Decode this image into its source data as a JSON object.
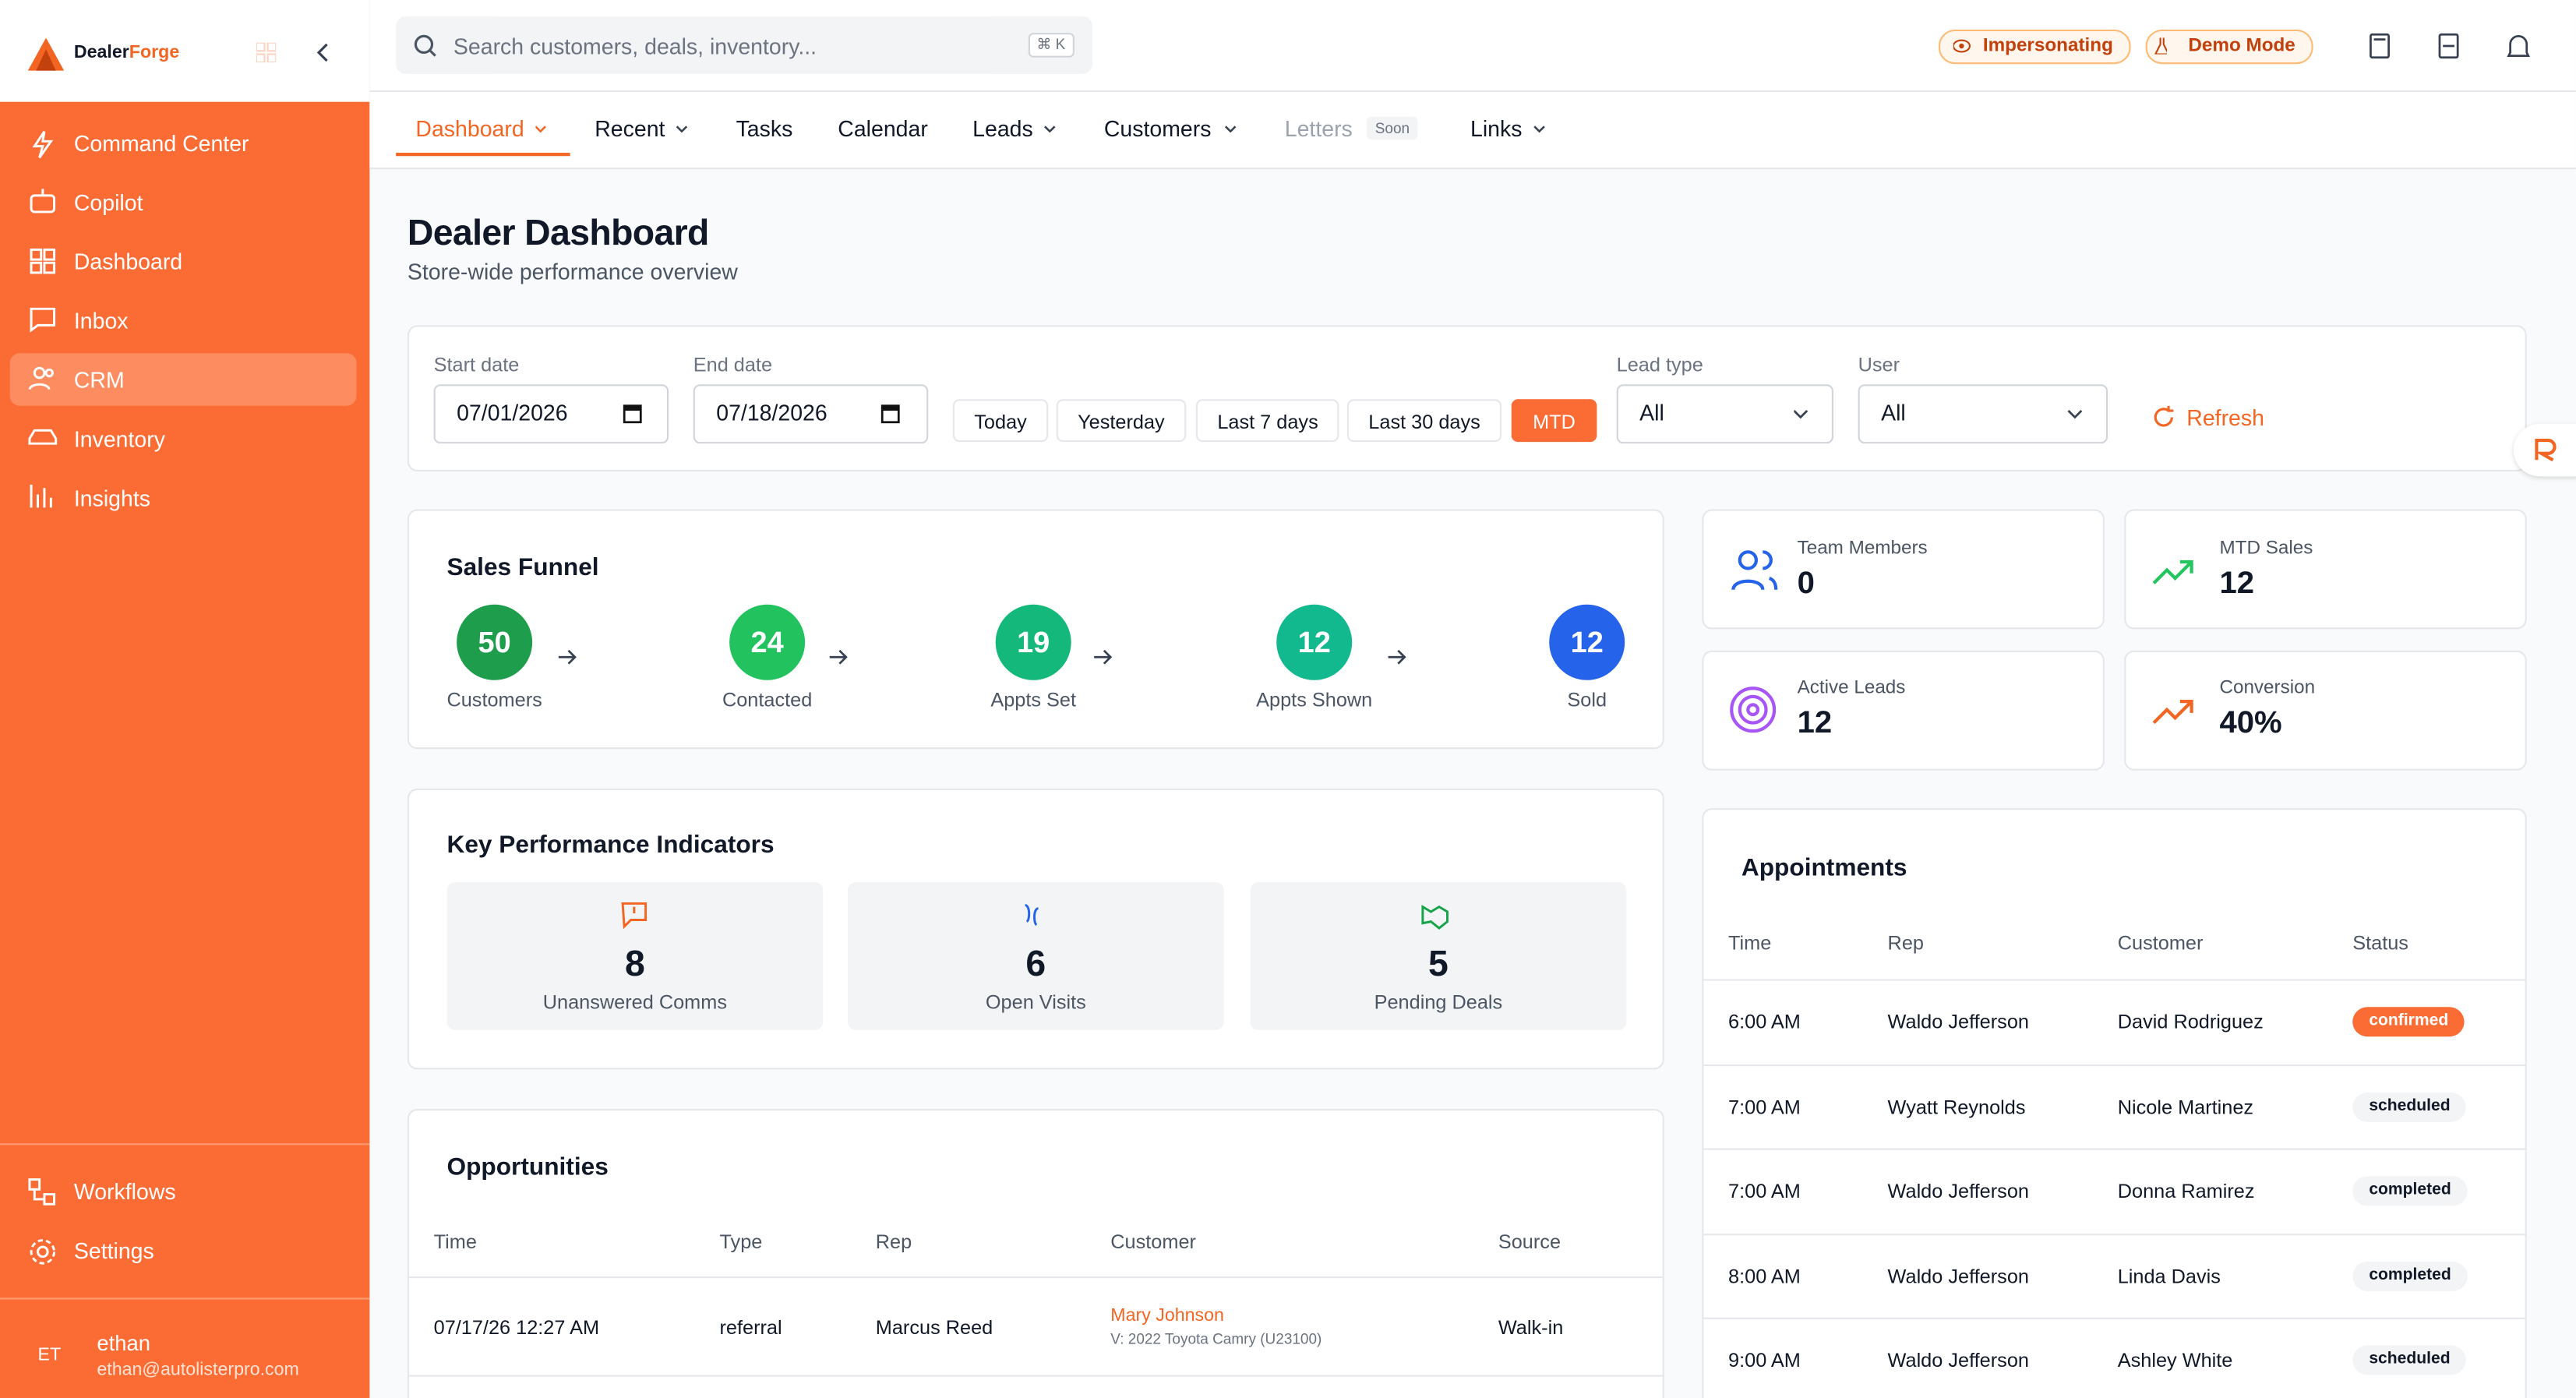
{
  "sidebar": {
    "brand": {
      "part1": "Dealer",
      "part2": "Forge"
    },
    "nav": [
      "Command Center",
      "Copilot",
      "Dashboard",
      "Inbox",
      "CRM",
      "Inventory",
      "Insights"
    ],
    "bottom_nav": [
      "Workflows",
      "Settings"
    ],
    "user": {
      "initials": "ET",
      "name": "ethan",
      "email": "ethan@autolisterpro.com"
    }
  },
  "topbar": {
    "search_placeholder": "Search customers, deals, inventory...",
    "shortcut": "⌘ K",
    "badges": [
      "Impersonating",
      "Demo Mode"
    ]
  },
  "tabs": {
    "items": [
      "Dashboard",
      "Recent",
      "Tasks",
      "Calendar",
      "Leads",
      "Customers",
      "Letters",
      "Links"
    ],
    "soon": "Soon"
  },
  "header": {
    "title": "Dealer Dashboard",
    "subtitle": "Store-wide performance overview"
  },
  "filters": {
    "start_label": "Start date",
    "start": "07/01/2026",
    "end_label": "End date",
    "end": "07/18/2026",
    "ranges": [
      "Today",
      "Yesterday",
      "Last 7 days",
      "Last 30 days",
      "MTD"
    ],
    "lead_type_label": "Lead type",
    "lead_type": "All",
    "user_label": "User",
    "user": "All",
    "refresh": "Refresh"
  },
  "funnel": {
    "title": "Sales Funnel",
    "stages": [
      {
        "count": 50,
        "label": "Customers"
      },
      {
        "count": 24,
        "label": "Contacted"
      },
      {
        "count": 19,
        "label": "Appts Set"
      },
      {
        "count": 12,
        "label": "Appts Shown"
      },
      {
        "count": 12,
        "label": "Sold"
      }
    ]
  },
  "stats": [
    {
      "label": "Team Members",
      "value": "0"
    },
    {
      "label": "MTD Sales",
      "value": "12"
    },
    {
      "label": "Active Leads",
      "value": "12"
    },
    {
      "label": "Conversion",
      "value": "40%"
    }
  ],
  "kpis": {
    "title": "Key Performance Indicators",
    "items": [
      {
        "value": 8,
        "label": "Unanswered Comms"
      },
      {
        "value": 6,
        "label": "Open Visits"
      },
      {
        "value": 5,
        "label": "Pending Deals"
      }
    ]
  },
  "appointments": {
    "title": "Appointments",
    "columns": [
      "Time",
      "Rep",
      "Customer",
      "Status"
    ],
    "rows": [
      [
        "6:00 AM",
        "Waldo Jefferson",
        "David Rodriguez",
        "confirmed"
      ],
      [
        "7:00 AM",
        "Wyatt Reynolds",
        "Nicole Martinez",
        "scheduled"
      ],
      [
        "7:00 AM",
        "Waldo Jefferson",
        "Donna Ramirez",
        "completed"
      ],
      [
        "8:00 AM",
        "Waldo Jefferson",
        "Linda Davis",
        "completed"
      ],
      [
        "9:00 AM",
        "Waldo Jefferson",
        "Ashley White",
        "scheduled"
      ]
    ]
  },
  "opportunities": {
    "title": "Opportunities",
    "columns": [
      "Time",
      "Type",
      "Rep",
      "Customer",
      "Source"
    ],
    "rows": [
      {
        "time": "07/17/26 12:27 AM",
        "type": "referral",
        "rep": "Marcus Reed",
        "customer": "Mary Johnson",
        "vehicle": "V: 2022 Toyota Camry (U23100)",
        "source": "Walk-in"
      }
    ]
  }
}
